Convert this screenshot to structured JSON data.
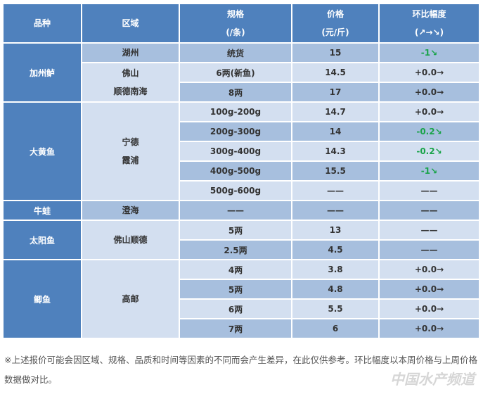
{
  "header": {
    "variety": "品种",
    "region": "区域",
    "spec": [
      "规格",
      "(/条)"
    ],
    "price": [
      "价格",
      "(元/斤)"
    ],
    "change": [
      "环比幅度",
      "(↗→↘)"
    ]
  },
  "groups": [
    {
      "variety": "加州鲈",
      "regions": [
        [
          "湖州"
        ],
        [
          "佛山",
          "顺德南海"
        ]
      ],
      "rows": [
        {
          "spec": "统货",
          "price": "15",
          "change": "-1↘"
        },
        {
          "spec": "6两(新鱼)",
          "price": "14.5",
          "change": "+0.0→"
        },
        {
          "spec": "8两",
          "price": "17",
          "change": "+0.0→"
        }
      ]
    },
    {
      "variety": "大黄鱼",
      "regions": [
        [
          "宁德",
          "霞浦"
        ]
      ],
      "rows": [
        {
          "spec": "100g-200g",
          "price": "14.7",
          "change": "+0.0→"
        },
        {
          "spec": "200g-300g",
          "price": "14",
          "change": "-0.2↘"
        },
        {
          "spec": "300g-400g",
          "price": "14.3",
          "change": "-0.2↘"
        },
        {
          "spec": "400g-500g",
          "price": "15.5",
          "change": "-1↘"
        },
        {
          "spec": "500g-600g",
          "price": "——",
          "change": "——"
        }
      ]
    },
    {
      "variety": "牛蛙",
      "regions": [
        [
          "澄海"
        ]
      ],
      "rows": [
        {
          "spec": "——",
          "price": "——",
          "change": "——"
        }
      ]
    },
    {
      "variety": "太阳鱼",
      "regions": [
        [
          "佛山顺德"
        ]
      ],
      "rows": [
        {
          "spec": "5两",
          "price": "13",
          "change": "——"
        },
        {
          "spec": "2.5两",
          "price": "4.5",
          "change": "——"
        }
      ]
    },
    {
      "variety": "鲫鱼",
      "regions": [
        [
          "高邮"
        ]
      ],
      "rows": [
        {
          "spec": "4两",
          "price": "3.8",
          "change": "+0.0→"
        },
        {
          "spec": "5两",
          "price": "4.8",
          "change": "+0.0→"
        },
        {
          "spec": "6两",
          "price": "5.5",
          "change": "+0.0→"
        },
        {
          "spec": "7两",
          "price": "6",
          "change": "+0.0→"
        }
      ]
    }
  ],
  "colors": {
    "header": "#4f81bd",
    "dark_row": "#a7bfde",
    "light_row": "#d3dff0",
    "down": "#1aa34a"
  },
  "footer": "※上述报价可能会因区域、规格、品质和时间等因素的不同而会产生差异，在此仅供参考。环比幅度以本周价格与上周价格数据做对比。",
  "watermark": "中国水产频道"
}
